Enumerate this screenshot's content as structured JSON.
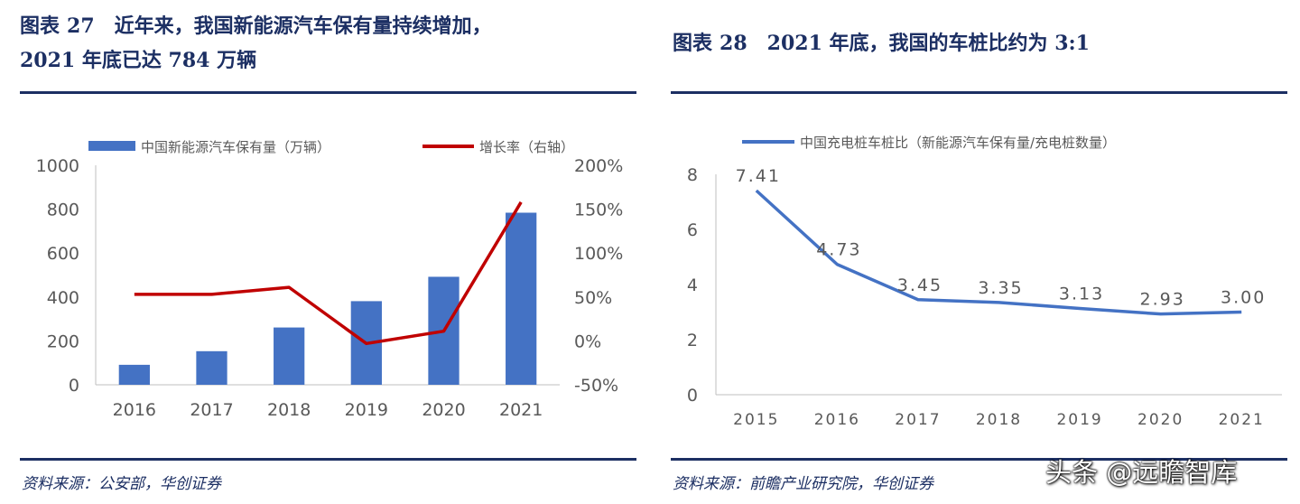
{
  "left": {
    "title_prefix": "图表",
    "title_number": "27",
    "title_line1": "近年来，我国新能源汽车保有量持续增加，",
    "title_line2": "2021 年底已达 784 万辆",
    "source": "资料来源：公安部，华创证券"
  },
  "right": {
    "title_prefix": "图表",
    "title_number": "28",
    "title_text": "2021 年底，我国的车桩比约为 3:1",
    "source": "资料来源：前瞻产业研究院，华创证券"
  },
  "watermark": "头条 @远瞻智库",
  "colors": {
    "bar": "#4472c4",
    "growth_line": "#c00000",
    "ratio_line": "#4472c4",
    "heading": "#1c2f63"
  },
  "chart_data": [
    {
      "type": "bar",
      "categories": [
        "2016",
        "2017",
        "2018",
        "2019",
        "2020",
        "2021"
      ],
      "series": [
        {
          "name": "中国新能源汽车保有量（万辆）",
          "type": "bar",
          "axis": "left",
          "values": [
            91,
            153,
            261,
            381,
            492,
            784
          ]
        },
        {
          "name": "增长率（右轴）",
          "type": "line",
          "axis": "right",
          "values": [
            53,
            53,
            61,
            -3,
            11,
            158
          ]
        }
      ],
      "ylim": [
        0,
        1000
      ],
      "yticks": [
        "0",
        "200",
        "400",
        "600",
        "800",
        "1000"
      ],
      "y2lim": [
        -50,
        200
      ],
      "y2ticks": [
        "-50%",
        "0%",
        "50%",
        "100%",
        "150%",
        "200%"
      ],
      "legend_position": "top",
      "grid": false
    },
    {
      "type": "line",
      "categories": [
        "2015",
        "2016",
        "2017",
        "2018",
        "2019",
        "2020",
        "2021"
      ],
      "series": [
        {
          "name": "中国充电桩车桩比（新能源汽车保有量/充电桩数量）",
          "values": [
            7.41,
            4.73,
            3.45,
            3.35,
            3.13,
            2.93,
            3.0
          ]
        }
      ],
      "data_labels": [
        "7.41",
        "4.73",
        "3.45",
        "3.35",
        "3.13",
        "2.93",
        "3.00"
      ],
      "ylim": [
        0,
        8
      ],
      "yticks": [
        "0",
        "2",
        "4",
        "6",
        "8"
      ],
      "legend_position": "top",
      "grid": false
    }
  ]
}
